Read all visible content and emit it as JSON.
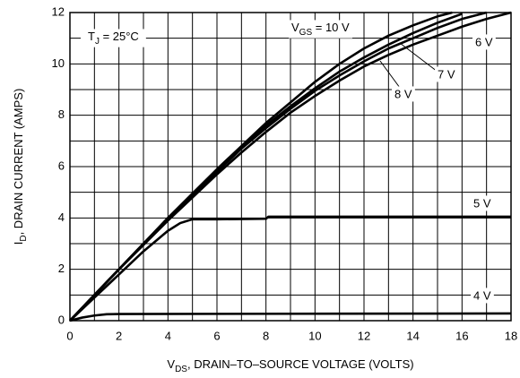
{
  "chart_data": {
    "type": "line",
    "x_label": [
      "V",
      "DS",
      ", DRAIN–TO–SOURCE VOLTAGE (VOLTS)"
    ],
    "y_label": [
      "I",
      "D",
      ", DRAIN CURRENT (AMPS)"
    ],
    "annotations": [
      [
        "T",
        "J",
        " = 25°C"
      ]
    ],
    "xlim": [
      0,
      18
    ],
    "ylim": [
      0,
      12
    ],
    "xticks": [
      0,
      2,
      4,
      6,
      8,
      10,
      12,
      14,
      16,
      18
    ],
    "yticks": [
      0,
      2,
      4,
      6,
      8,
      10,
      12
    ],
    "x_minor_grid": [
      1,
      3,
      5,
      7,
      9,
      11,
      13,
      15,
      17
    ],
    "y_minor_grid": [
      1,
      3,
      5,
      7,
      9,
      11
    ],
    "grid": true,
    "series": [
      {
        "name": [
          "V",
          "GS",
          " = 10 V"
        ],
        "color": "#000000",
        "x": [
          0,
          1,
          2,
          3,
          4,
          5,
          6,
          7,
          8,
          9,
          10,
          11,
          12,
          13,
          14,
          15,
          15.6
        ],
        "values": [
          0,
          1,
          2,
          3,
          4,
          4.95,
          5.9,
          6.8,
          7.7,
          8.5,
          9.3,
          10,
          10.6,
          11.1,
          11.5,
          11.85,
          12
        ]
      },
      {
        "name": "8 V",
        "color": "#000000",
        "x": [
          0,
          1,
          2,
          3,
          4,
          5,
          6,
          7,
          8,
          9,
          10,
          11,
          12,
          13,
          14,
          15,
          16
        ],
        "values": [
          0,
          1,
          2,
          3,
          4,
          4.9,
          5.85,
          6.75,
          7.6,
          8.35,
          9.05,
          9.7,
          10.25,
          10.75,
          11.2,
          11.6,
          11.95
        ]
      },
      {
        "name": "7 V",
        "color": "#000000",
        "x": [
          0,
          1,
          2,
          3,
          4,
          5,
          6,
          7,
          8,
          9,
          10,
          11,
          12,
          13,
          14,
          15,
          16,
          17
        ],
        "values": [
          0,
          1,
          2,
          3,
          3.95,
          4.85,
          5.8,
          6.7,
          7.5,
          8.25,
          8.95,
          9.55,
          10.1,
          10.6,
          11,
          11.4,
          11.75,
          12
        ]
      },
      {
        "name": "6 V",
        "color": "#000000",
        "x": [
          0,
          1,
          2,
          3,
          4,
          5,
          6,
          7,
          8,
          9,
          10,
          11,
          12,
          13,
          14,
          15,
          16,
          17,
          18
        ],
        "values": [
          0,
          1,
          2,
          2.95,
          3.9,
          4.8,
          5.7,
          6.55,
          7.35,
          8.1,
          8.75,
          9.35,
          9.9,
          10.35,
          10.75,
          11.1,
          11.45,
          11.75,
          12
        ]
      },
      {
        "name": "5 V",
        "color": "#000000",
        "x": [
          0,
          1,
          2,
          3,
          4,
          4.5,
          5,
          6,
          8,
          8.1,
          18
        ],
        "values": [
          0,
          0.9,
          1.8,
          2.7,
          3.5,
          3.8,
          3.95,
          3.95,
          3.97,
          4.05,
          4.05
        ]
      },
      {
        "name": "4 V",
        "color": "#000000",
        "x": [
          0,
          0.5,
          1,
          1.5,
          2,
          18
        ],
        "values": [
          0,
          0.12,
          0.2,
          0.25,
          0.26,
          0.28
        ]
      }
    ]
  }
}
